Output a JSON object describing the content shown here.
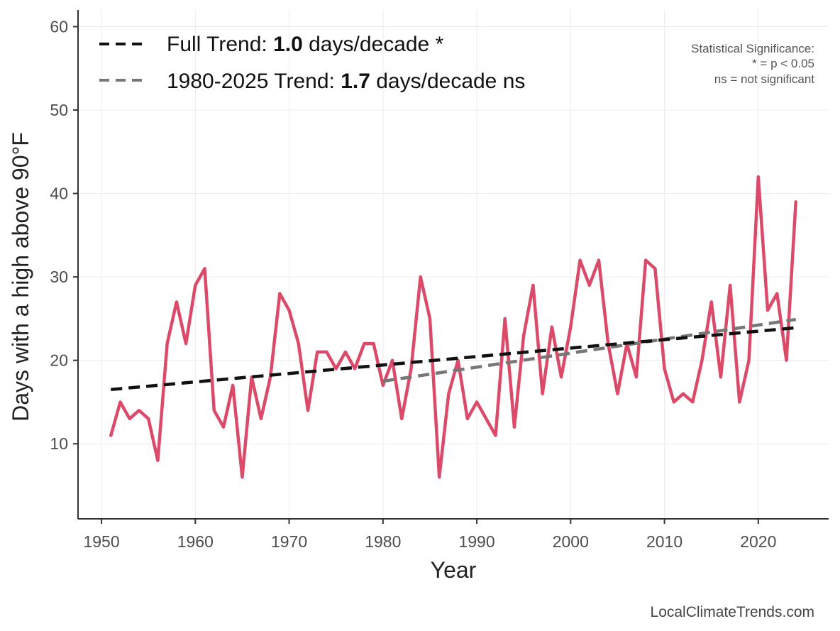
{
  "chart_data": {
    "type": "line",
    "title": "",
    "xlabel": "Year",
    "ylabel": "Days with a high above 90°F",
    "xlim": [
      1947.5,
      2027.5
    ],
    "ylim": [
      1,
      62
    ],
    "x_ticks": [
      1950,
      1960,
      1970,
      1980,
      1990,
      2000,
      2010,
      2020
    ],
    "y_ticks": [
      10,
      20,
      30,
      40,
      50,
      60
    ],
    "grid": true,
    "series": [
      {
        "name": "Days above 90°F",
        "color": "#dc4a6a",
        "x": [
          1951,
          1952,
          1953,
          1954,
          1955,
          1956,
          1957,
          1958,
          1959,
          1960,
          1961,
          1962,
          1963,
          1964,
          1965,
          1966,
          1967,
          1968,
          1969,
          1970,
          1971,
          1972,
          1973,
          1974,
          1975,
          1976,
          1977,
          1978,
          1979,
          1980,
          1981,
          1982,
          1983,
          1984,
          1985,
          1986,
          1987,
          1988,
          1989,
          1990,
          1991,
          1992,
          1993,
          1994,
          1995,
          1996,
          1997,
          1998,
          1999,
          2000,
          2001,
          2002,
          2003,
          2004,
          2005,
          2006,
          2007,
          2008,
          2009,
          2010,
          2011,
          2012,
          2013,
          2014,
          2015,
          2016,
          2017,
          2018,
          2019,
          2020,
          2021,
          2022,
          2023,
          2024
        ],
        "values": [
          11,
          15,
          13,
          14,
          13,
          8,
          22,
          27,
          22,
          29,
          31,
          14,
          12,
          17,
          6,
          18,
          13,
          18,
          28,
          26,
          22,
          14,
          21,
          21,
          19,
          21,
          19,
          22,
          22,
          17,
          20,
          13,
          19,
          30,
          25,
          6,
          16,
          20,
          13,
          15,
          13,
          11,
          25,
          12,
          23,
          29,
          16,
          24,
          18,
          24,
          32,
          29,
          32,
          22,
          16,
          22,
          18,
          32,
          31,
          19,
          15,
          16,
          15,
          20,
          27,
          18,
          29,
          15,
          20,
          42,
          26,
          28,
          20,
          39
        ]
      }
    ],
    "trend_lines": [
      {
        "name": "Full Trend",
        "color": "#111111",
        "style": "dashed",
        "x": [
          1951,
          2024
        ],
        "y": [
          16.5,
          23.9
        ]
      },
      {
        "name": "1980-2025 Trend",
        "color": "#777777",
        "style": "dashed",
        "x": [
          1980,
          2024
        ],
        "y": [
          17.5,
          24.9
        ]
      }
    ],
    "legend": {
      "position": "top-left",
      "entries": [
        {
          "prefix": "Full Trend: ",
          "value": "1.0",
          "suffix": " days/decade *",
          "color": "#111111"
        },
        {
          "prefix": "1980-2025 Trend: ",
          "value": "1.7",
          "suffix": " days/decade ns",
          "color": "#777777"
        }
      ]
    },
    "annotations": {
      "significance": [
        "Statistical Significance:",
        "* = p < 0.05",
        "ns = not significant"
      ],
      "credit": "LocalClimateTrends.com"
    }
  }
}
